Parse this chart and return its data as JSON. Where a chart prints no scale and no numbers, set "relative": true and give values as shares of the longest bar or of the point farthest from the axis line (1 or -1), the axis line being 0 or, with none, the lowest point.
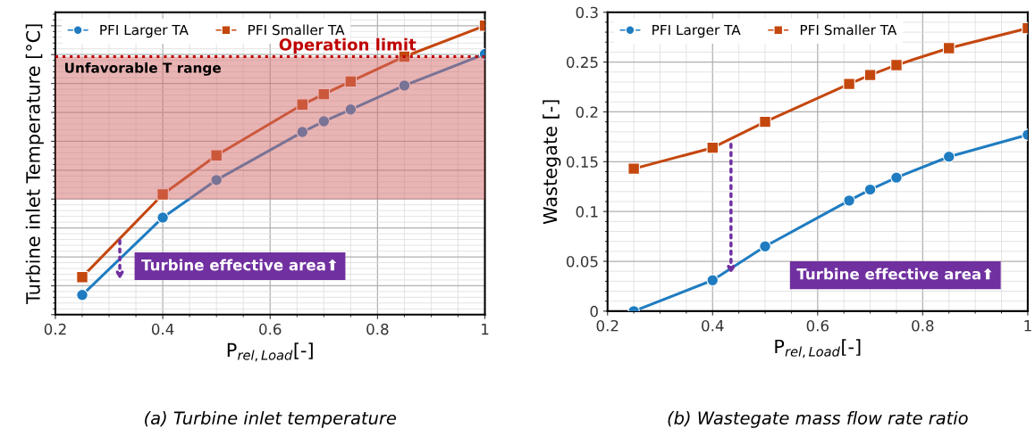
{
  "chart_data": [
    {
      "type": "line",
      "relative": true,
      "xlabel": "P$_{rel,Load}$[-]",
      "ylabel": "Turbine inlet Temperature [°C]",
      "xlim": [
        0.2,
        1
      ],
      "xticks": [
        0.2,
        0.4,
        0.6,
        0.8,
        1
      ],
      "grid": true,
      "legend": "top left",
      "tick_labels": "x",
      "x": [
        0.25,
        0.4,
        0.5,
        0.66,
        0.7,
        0.75,
        0.85,
        1.0
      ],
      "series": [
        {
          "name": "PFI Larger TA",
          "color": "#1f7cc1",
          "marker": "circle",
          "values": [
            0.068,
            0.336,
            0.466,
            0.632,
            0.669,
            0.71,
            0.793,
            0.902
          ]
        },
        {
          "name": "PFI Smaller TA",
          "color": "#c4470e",
          "marker": "square",
          "values": [
            0.13,
            0.416,
            0.551,
            0.727,
            0.763,
            0.807,
            0.893,
            1.0
          ]
        }
      ],
      "ref_lines": [
        {
          "axis": "y",
          "value": 0.893,
          "label": "Operation limit",
          "color": "#c00000",
          "line_style": "dotted"
        }
      ],
      "bands": [
        {
          "axis": "y",
          "from": 0.399,
          "to": 0.893,
          "label": "Unfavorable T range",
          "color": "#d46a6a"
        }
      ],
      "annotations": [
        "Turbine effective area⬆",
        "(a) Turbine inlet temperature"
      ]
    },
    {
      "type": "line",
      "xlabel": "P$_{rel,Load}$[-]",
      "ylabel": "Wastegate [-]",
      "xlim": [
        0.2,
        1
      ],
      "xticks": [
        0.2,
        0.4,
        0.6,
        0.8,
        1
      ],
      "ylim": [
        0,
        0.3
      ],
      "yticks": [
        0,
        0.05,
        0.1,
        0.15,
        0.2,
        0.25,
        0.3
      ],
      "grid": true,
      "legend": "top left",
      "x": [
        0.25,
        0.4,
        0.5,
        0.66,
        0.7,
        0.75,
        0.85,
        1.0
      ],
      "series": [
        {
          "name": "PFI Larger TA",
          "color": "#1f7cc1",
          "marker": "circle",
          "values": [
            0.0,
            0.031,
            0.065,
            0.111,
            0.122,
            0.134,
            0.155,
            0.177
          ]
        },
        {
          "name": "PFI Smaller TA",
          "color": "#c4470e",
          "marker": "square",
          "values": [
            0.143,
            0.164,
            0.19,
            0.228,
            0.237,
            0.247,
            0.264,
            0.284
          ]
        }
      ],
      "annotations": [
        "Turbine effective area⬆",
        "(b) Wastegate mass flow rate ratio"
      ]
    }
  ]
}
